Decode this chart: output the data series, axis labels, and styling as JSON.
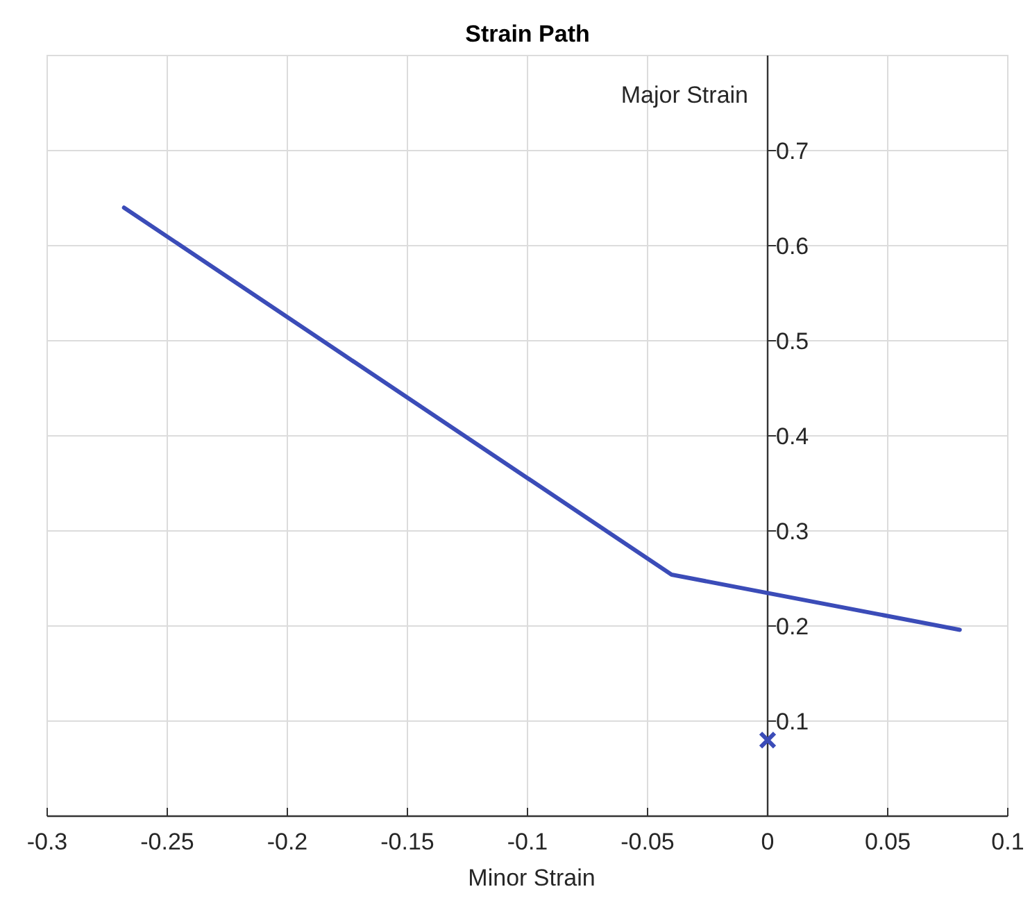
{
  "chart_data": {
    "type": "line",
    "title": "Strain Path",
    "xlabel": "Minor Strain",
    "ylabel": "Major Strain",
    "xlim": [
      -0.3,
      0.1
    ],
    "xticks": [
      -0.3,
      -0.25,
      -0.2,
      -0.15,
      -0.1,
      -0.05,
      0,
      0.05,
      0.1
    ],
    "ylim": [
      0,
      0.8
    ],
    "yticks": [
      0.1,
      0.2,
      0.3,
      0.4,
      0.5,
      0.6,
      0.7
    ],
    "grid": true,
    "series": [
      {
        "color": "#3b4cb8",
        "x": [
          -0.268,
          -0.04,
          0.08
        ],
        "values": [
          0.64,
          0.254,
          0.196
        ]
      },
      {
        "type": "scatter",
        "marker": "cross",
        "color": "#3b4cb8",
        "x": [
          0
        ],
        "values": [
          0.08
        ]
      }
    ]
  }
}
